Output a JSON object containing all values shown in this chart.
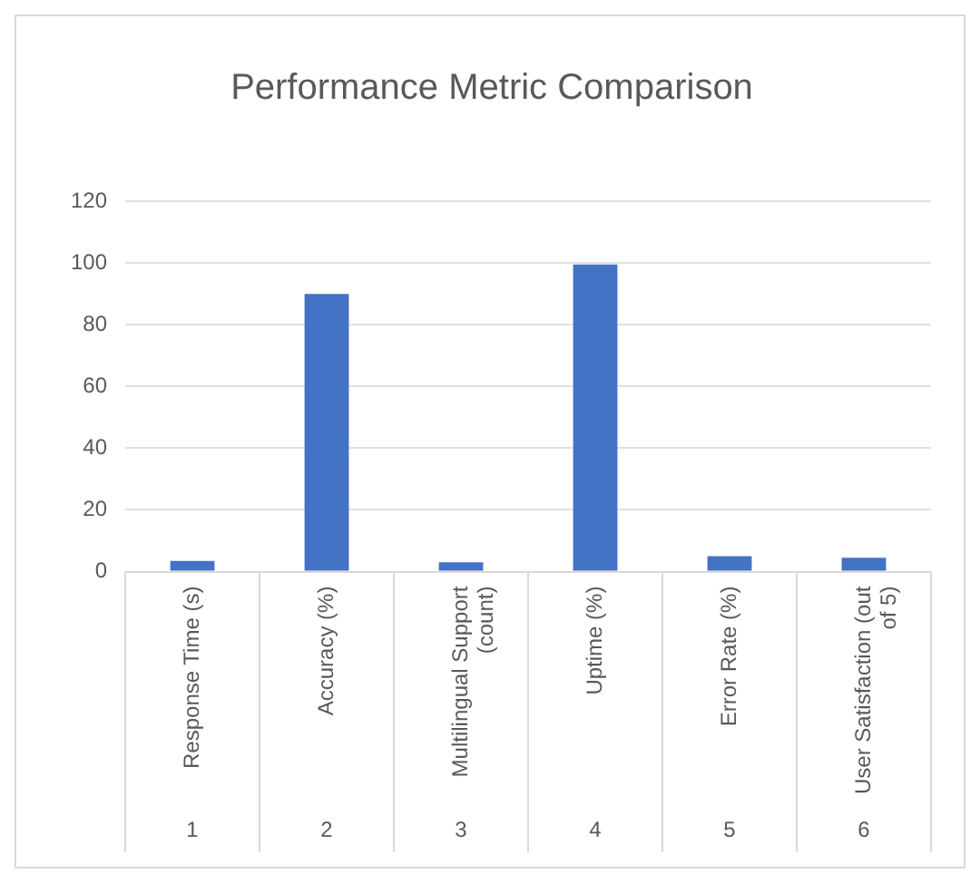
{
  "chart_data": {
    "type": "bar",
    "title": "Performance Metric Comparison",
    "categories": [
      "Response Time (s)",
      "Accuracy (%)",
      "Multilingual Support (count)",
      "Uptime (%)",
      "Error Rate (%)",
      "User Satisfaction (out of 5)"
    ],
    "values": [
      3.5,
      90,
      3,
      99.5,
      5,
      4.5
    ],
    "color": "#4472c4",
    "ylim": [
      0,
      120
    ],
    "yticks": [
      0,
      20,
      40,
      60,
      80,
      100,
      120
    ],
    "grid": "y",
    "annotations": [
      "1",
      "2",
      "3",
      "4",
      "5",
      "6"
    ]
  }
}
